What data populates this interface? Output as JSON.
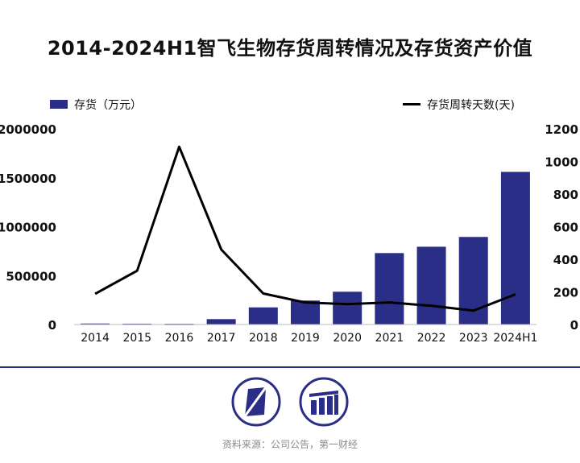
{
  "chart_data": {
    "type": "bar+line",
    "title": "2014-2024H1智飞生物存货周转情况及存货资产价值",
    "categories": [
      "2014",
      "2015",
      "2016",
      "2017",
      "2018",
      "2019",
      "2020",
      "2021",
      "2022",
      "2023",
      "2024H1"
    ],
    "series": [
      {
        "name": "存货（万元）",
        "type": "bar",
        "axis": "left",
        "values": [
          10000,
          8000,
          7000,
          55000,
          175000,
          245000,
          335000,
          730000,
          795000,
          895000,
          1560000
        ]
      },
      {
        "name": "存货周转天数(天)",
        "type": "line",
        "axis": "right",
        "values": [
          188,
          330,
          1090,
          460,
          190,
          135,
          125,
          135,
          115,
          85,
          185
        ]
      }
    ],
    "left_axis": {
      "ylim": [
        0,
        2000000
      ],
      "ticks": [
        "0",
        "500000",
        "1000000",
        "1500000",
        "2000000"
      ],
      "tick_values": [
        0,
        500000,
        1000000,
        1500000,
        2000000
      ]
    },
    "right_axis": {
      "ylim": [
        0,
        1200
      ],
      "ticks": [
        "0",
        "200",
        "400",
        "600",
        "800",
        "1000",
        "1200"
      ],
      "tick_values": [
        0,
        200,
        400,
        600,
        800,
        1000,
        1200
      ]
    },
    "legend_placement": "top",
    "grid": false,
    "colors": {
      "bar": "#2a2e86",
      "line": "#000000",
      "divider": "#2a2e7a"
    }
  },
  "footer": {
    "source": "资料来源：公司公告，第一财经"
  }
}
